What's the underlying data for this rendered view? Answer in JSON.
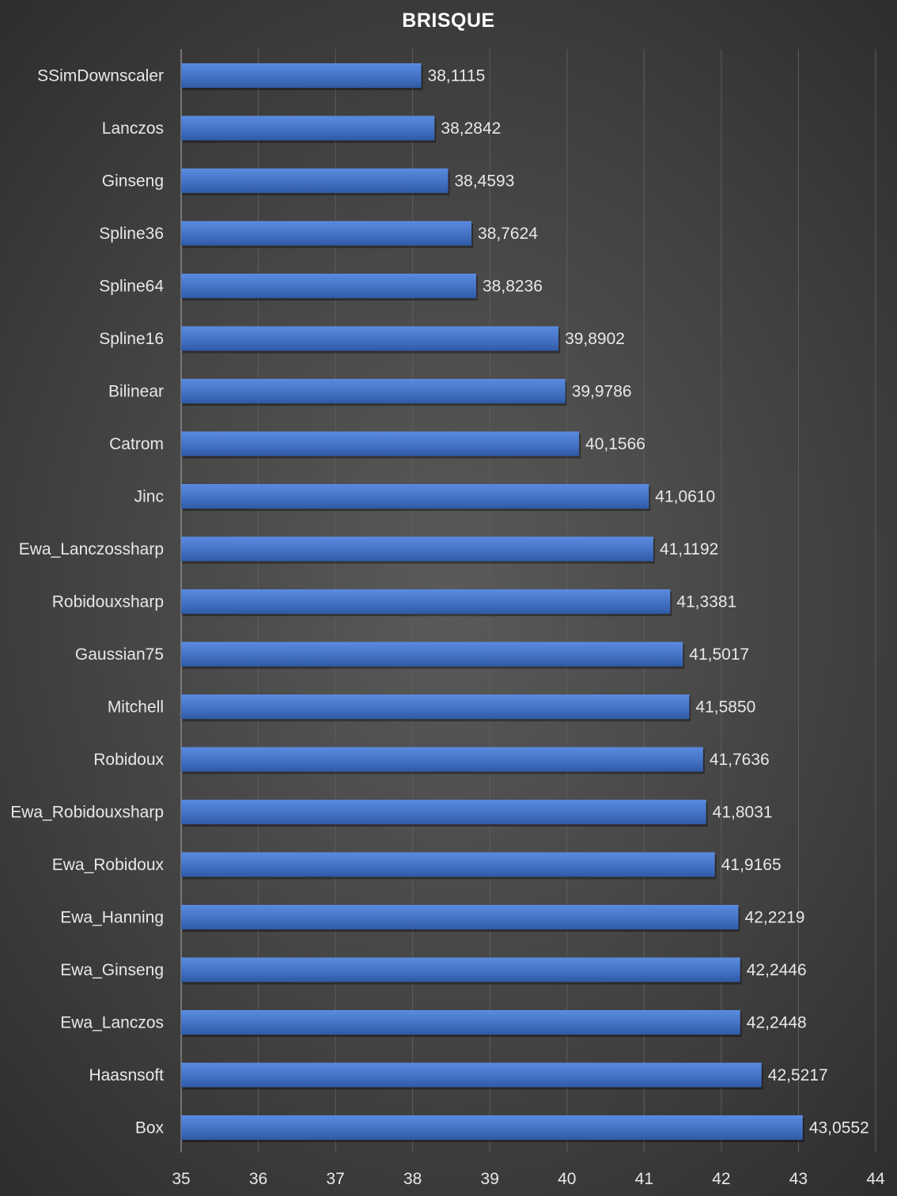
{
  "chart_data": {
    "type": "bar",
    "orientation": "horizontal",
    "title": "BRISQUE",
    "xlabel": "",
    "ylabel": "",
    "xlim": [
      35,
      44
    ],
    "xticks": [
      "35",
      "36",
      "37",
      "38",
      "39",
      "40",
      "41",
      "42",
      "43",
      "44"
    ],
    "grid": "vertical",
    "bar_color": "#4472c4",
    "categories": [
      "SSimDownscaler",
      "Lanczos",
      "Ginseng",
      "Spline36",
      "Spline64",
      "Spline16",
      "Bilinear",
      "Catrom",
      "Jinc",
      "Ewa_Lanczossharp",
      "Robidouxsharp",
      "Gaussian75",
      "Mitchell",
      "Robidoux",
      "Ewa_Robidouxsharp",
      "Ewa_Robidoux",
      "Ewa_Hanning",
      "Ewa_Ginseng",
      "Ewa_Lanczos",
      "Haasnsoft",
      "Box"
    ],
    "values": [
      38.1115,
      38.2842,
      38.4593,
      38.7624,
      38.8236,
      39.8902,
      39.9786,
      40.1566,
      41.061,
      41.1192,
      41.3381,
      41.5017,
      41.585,
      41.7636,
      41.8031,
      41.9165,
      42.2219,
      42.2446,
      42.2448,
      42.5217,
      43.0552
    ],
    "value_labels": [
      "38,1115",
      "38,2842",
      "38,4593",
      "38,7624",
      "38,8236",
      "39,8902",
      "39,9786",
      "40,1566",
      "41,0610",
      "41,1192",
      "41,3381",
      "41,5017",
      "41,5850",
      "41,7636",
      "41,8031",
      "41,9165",
      "42,2219",
      "42,2446",
      "42,2448",
      "42,5217",
      "43,0552"
    ]
  }
}
